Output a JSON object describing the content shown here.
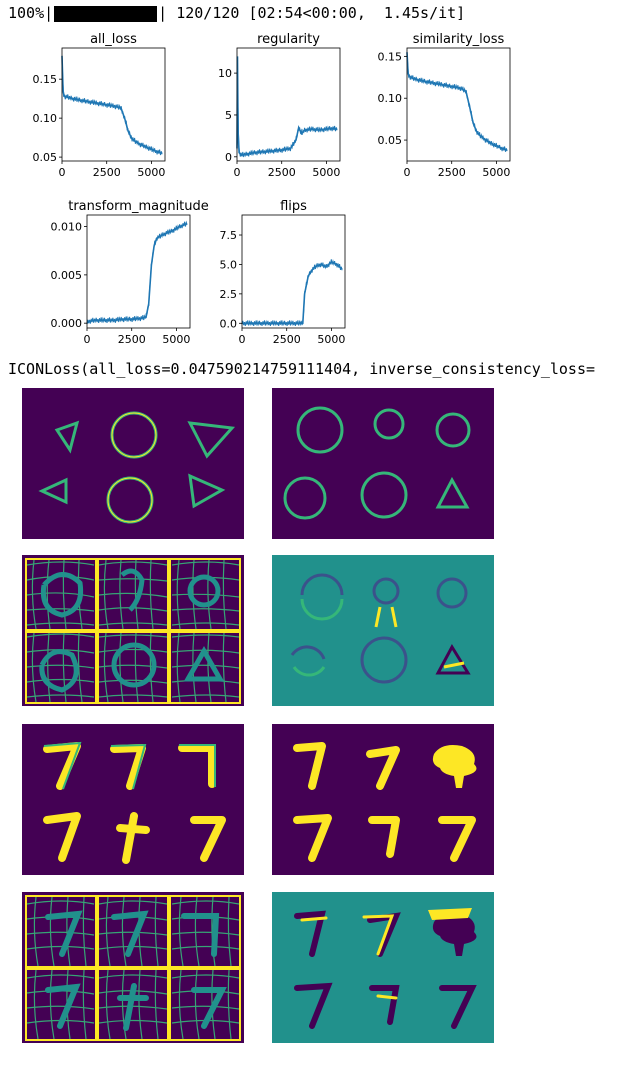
{
  "progress": {
    "percent_label": "100%|",
    "fraction": 1.0,
    "after_bar": "| 120/120 [02:54<00:00,  1.45s/it]"
  },
  "result_text": "ICONLoss(all_loss=0.047590214759111404, inverse_consistency_loss=",
  "plots": [
    {
      "title": "all_loss",
      "type": "line",
      "xlim": [
        0,
        5760
      ],
      "ylim": [
        0.045,
        0.19
      ],
      "xticks": [
        0,
        2500,
        5000
      ],
      "yticks": [
        0.05,
        0.1,
        0.15
      ],
      "ytick_labels": [
        "0.05",
        "0.10",
        "0.15"
      ],
      "series": [
        {
          "x": [
            0,
            60,
            120,
            300,
            600,
            1000,
            1500,
            2000,
            2500,
            3000,
            3300,
            3500,
            3700,
            3900,
            4100,
            4400,
            4700,
            5000,
            5300,
            5600
          ],
          "y": [
            0.18,
            0.135,
            0.128,
            0.127,
            0.125,
            0.123,
            0.121,
            0.119,
            0.117,
            0.115,
            0.113,
            0.1,
            0.083,
            0.074,
            0.07,
            0.066,
            0.063,
            0.06,
            0.057,
            0.055
          ]
        }
      ],
      "color": "#1f77b4"
    },
    {
      "title": "regularity",
      "type": "line",
      "xlim": [
        0,
        5760
      ],
      "ylim": [
        -0.5,
        13
      ],
      "xticks": [
        0,
        2500,
        5000
      ],
      "yticks": [
        0,
        5,
        10
      ],
      "ytick_labels": [
        "0",
        "5",
        "10"
      ],
      "series": [
        {
          "x": [
            0,
            30,
            60,
            120,
            250,
            500,
            1000,
            1500,
            2000,
            2500,
            3000,
            3300,
            3450,
            3600,
            3800,
            4200,
            4600,
            5000,
            5300,
            5600
          ],
          "y": [
            1.0,
            12.0,
            3.0,
            0.5,
            0.2,
            0.3,
            0.5,
            0.6,
            0.7,
            0.8,
            1.0,
            2.0,
            3.5,
            2.8,
            3.2,
            3.3,
            3.2,
            3.3,
            3.4,
            3.3
          ]
        }
      ],
      "color": "#1f77b4"
    },
    {
      "title": "similarity_loss",
      "type": "line",
      "xlim": [
        0,
        5760
      ],
      "ylim": [
        0.025,
        0.16
      ],
      "xticks": [
        0,
        2500,
        5000
      ],
      "yticks": [
        0.05,
        0.1,
        0.15
      ],
      "ytick_labels": [
        "0.05",
        "0.10",
        "0.15"
      ],
      "series": [
        {
          "x": [
            0,
            60,
            120,
            300,
            600,
            1000,
            1500,
            2000,
            2500,
            3000,
            3300,
            3500,
            3700,
            3900,
            4100,
            4400,
            4700,
            5000,
            5300,
            5600
          ],
          "y": [
            0.155,
            0.13,
            0.126,
            0.124,
            0.122,
            0.12,
            0.118,
            0.116,
            0.114,
            0.112,
            0.108,
            0.09,
            0.07,
            0.06,
            0.055,
            0.05,
            0.046,
            0.043,
            0.04,
            0.038
          ]
        }
      ],
      "color": "#1f77b4"
    },
    {
      "title": "transform_magnitude",
      "type": "line",
      "xlim": [
        0,
        5760
      ],
      "ylim": [
        -0.0005,
        0.0112
      ],
      "xticks": [
        0,
        2500,
        5000
      ],
      "yticks": [
        0.0,
        0.005,
        0.01
      ],
      "ytick_labels": [
        "0.000",
        "0.005",
        "0.010"
      ],
      "series": [
        {
          "x": [
            0,
            100,
            500,
            1000,
            1500,
            2000,
            2500,
            3000,
            3300,
            3450,
            3600,
            3750,
            3900,
            4100,
            4400,
            4700,
            5000,
            5300,
            5600
          ],
          "y": [
            0.0,
            0.0002,
            0.0003,
            0.0003,
            0.0003,
            0.0004,
            0.0004,
            0.0005,
            0.0006,
            0.002,
            0.006,
            0.008,
            0.0088,
            0.009,
            0.0093,
            0.0095,
            0.0098,
            0.0101,
            0.0103
          ]
        }
      ],
      "color": "#1f77b4"
    },
    {
      "title": "flips",
      "type": "line",
      "xlim": [
        0,
        5760
      ],
      "ylim": [
        -0.4,
        9.2
      ],
      "xticks": [
        0,
        2500,
        5000
      ],
      "yticks": [
        0.0,
        2.5,
        5.0,
        7.5
      ],
      "ytick_labels": [
        "0.0",
        "2.5",
        "5.0",
        "7.5"
      ],
      "series": [
        {
          "x": [
            0,
            1000,
            2000,
            3000,
            3400,
            3500,
            3700,
            3900,
            4100,
            4400,
            4700,
            5000,
            5300,
            5600
          ],
          "y": [
            0.0,
            0.0,
            0.0,
            0.0,
            0.0,
            2.5,
            4.0,
            4.5,
            4.8,
            5.0,
            4.8,
            5.2,
            5.0,
            4.6
          ]
        }
      ],
      "color": "#1f77b4"
    }
  ],
  "colors": {
    "viridis_dark": "#440154",
    "viridis_teal": "#21918c",
    "viridis_green": "#35b779",
    "viridis_yellow": "#fde725",
    "viridis_blue": "#3b528b",
    "line_blue": "#1f77b4"
  }
}
